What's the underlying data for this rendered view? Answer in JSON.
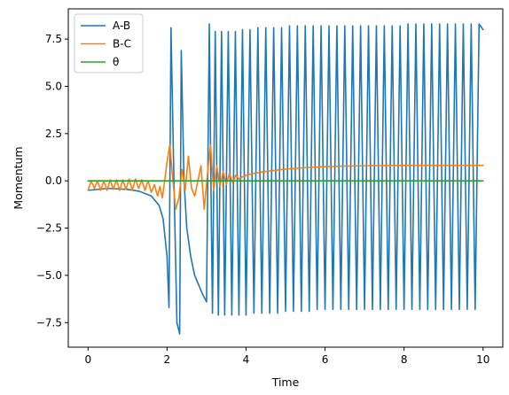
{
  "chart_data": {
    "type": "line",
    "title": "",
    "xlabel": "Time",
    "ylabel": "Momentum",
    "xlim": [
      -0.5,
      10.5
    ],
    "ylim": [
      -8.8,
      9.1
    ],
    "x_ticks": [
      0,
      2,
      4,
      6,
      8,
      10
    ],
    "y_ticks": [
      -7.5,
      -5.0,
      -2.5,
      0.0,
      2.5,
      5.0,
      7.5
    ],
    "x_tick_labels": [
      "0",
      "2",
      "4",
      "6",
      "8",
      "10"
    ],
    "y_tick_labels": [
      "−7.5",
      "−5.0",
      "−2.5",
      "0.0",
      "2.5",
      "5.0",
      "7.5"
    ],
    "grid": false,
    "legend_position": "top-left",
    "series": [
      {
        "name": "A-B",
        "color": "#1f77b4",
        "x": [
          0.0,
          0.5,
          1.0,
          1.3,
          1.6,
          1.8,
          1.9,
          2.0,
          2.05,
          2.1,
          2.17,
          2.25,
          2.32,
          2.36,
          2.43,
          2.5,
          2.6,
          2.7,
          2.8,
          2.9,
          3.0,
          3.07,
          3.11,
          3.15,
          3.22,
          3.3,
          3.38,
          3.46,
          3.55,
          3.64,
          3.73,
          3.82,
          3.91,
          4.0,
          4.1,
          4.2,
          4.3,
          4.4,
          4.5,
          4.6,
          4.7,
          4.8,
          4.9,
          5.0,
          5.1,
          5.2,
          5.3,
          5.4,
          5.5,
          5.6,
          5.7,
          5.8,
          5.9,
          6.0,
          6.1,
          6.2,
          6.3,
          6.4,
          6.5,
          6.6,
          6.7,
          6.8,
          6.9,
          7.0,
          7.1,
          7.2,
          7.3,
          7.4,
          7.5,
          7.6,
          7.7,
          7.8,
          7.9,
          8.0,
          8.1,
          8.2,
          8.3,
          8.4,
          8.5,
          8.6,
          8.7,
          8.8,
          8.9,
          9.0,
          9.1,
          9.2,
          9.3,
          9.4,
          9.5,
          9.6,
          9.7,
          9.8,
          9.9,
          10.0
        ],
        "y": [
          -0.5,
          -0.4,
          -0.45,
          -0.55,
          -0.8,
          -1.3,
          -2.0,
          -4.0,
          -6.7,
          8.1,
          0.5,
          -7.5,
          -8.1,
          6.9,
          0.0,
          -2.5,
          -4.0,
          -5.0,
          -5.5,
          -6.0,
          -6.4,
          8.3,
          0.0,
          -7.0,
          7.9,
          -7.1,
          7.9,
          -7.1,
          7.9,
          -7.1,
          7.9,
          -7.1,
          8.0,
          -7.1,
          8.0,
          -7.0,
          8.1,
          -7.0,
          8.1,
          -7.0,
          8.1,
          -7.0,
          8.1,
          -6.9,
          8.2,
          -6.9,
          8.2,
          -6.9,
          8.2,
          -6.9,
          8.2,
          -6.8,
          8.2,
          -6.8,
          8.2,
          -6.8,
          8.2,
          -6.8,
          8.2,
          -6.8,
          8.2,
          -6.8,
          8.2,
          -6.8,
          8.2,
          -6.8,
          8.2,
          -6.8,
          8.2,
          -6.8,
          8.2,
          -6.8,
          8.2,
          -6.8,
          8.3,
          -6.8,
          8.3,
          -6.8,
          8.3,
          -6.8,
          8.3,
          -6.8,
          8.3,
          -6.8,
          8.3,
          -6.8,
          8.3,
          -6.8,
          8.3,
          -6.8,
          8.3,
          -6.8,
          8.3,
          8.0
        ]
      },
      {
        "name": "B-C",
        "color": "#ff7f0e",
        "x": [
          0.0,
          0.08,
          0.16,
          0.24,
          0.32,
          0.4,
          0.48,
          0.56,
          0.64,
          0.72,
          0.8,
          0.88,
          0.96,
          1.04,
          1.12,
          1.2,
          1.28,
          1.36,
          1.44,
          1.52,
          1.6,
          1.68,
          1.76,
          1.82,
          1.88,
          1.94,
          2.0,
          2.07,
          2.14,
          2.22,
          2.3,
          2.38,
          2.46,
          2.54,
          2.62,
          2.7,
          2.78,
          2.86,
          2.94,
          3.02,
          3.1,
          3.18,
          3.26,
          3.34,
          3.42,
          3.5,
          3.58,
          3.66,
          3.74,
          3.82,
          3.9,
          4.0,
          4.2,
          4.5,
          5.0,
          5.5,
          6.0,
          6.5,
          7.0,
          8.0,
          9.0,
          10.0
        ],
        "y": [
          -0.5,
          0.0,
          -0.4,
          0.0,
          -0.5,
          0.0,
          -0.5,
          0.05,
          -0.45,
          0.05,
          -0.5,
          0.05,
          -0.45,
          0.1,
          -0.5,
          0.1,
          -0.4,
          0.05,
          -0.5,
          0.0,
          -0.6,
          -0.2,
          -0.8,
          -0.3,
          -0.9,
          0.0,
          1.0,
          1.9,
          0.2,
          -1.5,
          -0.9,
          0.6,
          -0.5,
          1.3,
          -0.4,
          -0.8,
          0.0,
          0.8,
          -1.5,
          0.3,
          1.9,
          -0.5,
          0.8,
          -0.3,
          0.5,
          -0.2,
          0.4,
          -0.1,
          0.3,
          0.1,
          0.2,
          0.3,
          0.4,
          0.5,
          0.62,
          0.7,
          0.75,
          0.78,
          0.8,
          0.82,
          0.82,
          0.82
        ]
      },
      {
        "name": "θ",
        "color": "#2ca02c",
        "x": [
          0.0,
          10.0
        ],
        "y": [
          0.0,
          0.0
        ]
      }
    ]
  }
}
